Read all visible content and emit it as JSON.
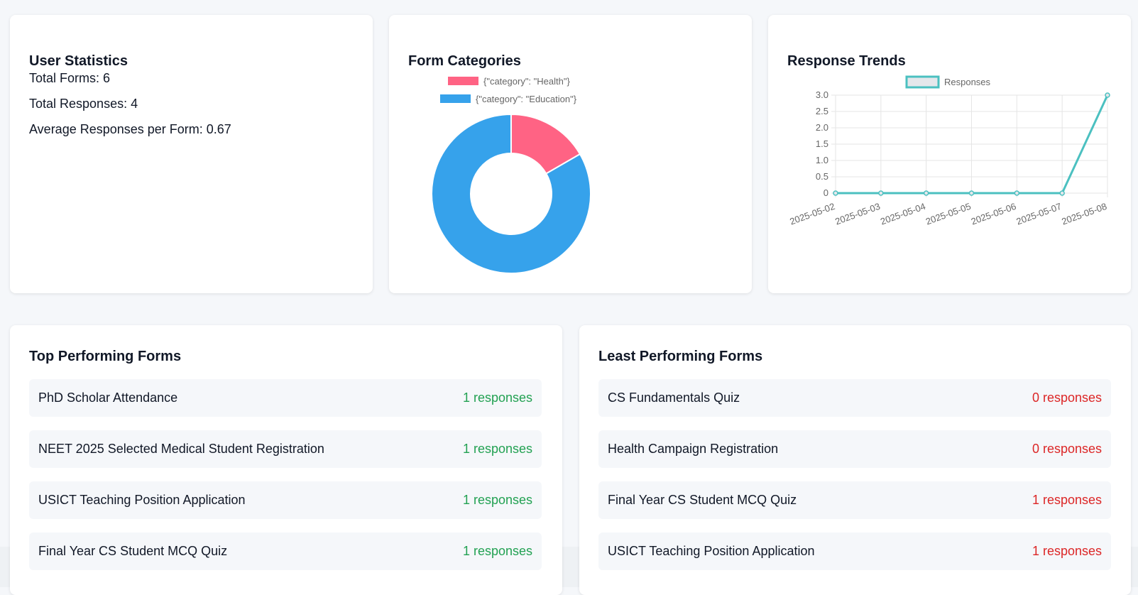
{
  "user_statistics": {
    "title": "User Statistics",
    "total_forms": "Total Forms: 6",
    "total_responses": "Total Responses: 4",
    "average_responses": "Average Responses per Form: 0.67"
  },
  "form_categories": {
    "title": "Form Categories",
    "legend": [
      {
        "label": "{\"category\": \"Health\"}",
        "color": "#ff6384"
      },
      {
        "label": "{\"category\": \"Education\"}",
        "color": "#36a2eb"
      }
    ]
  },
  "response_trends": {
    "title": "Response Trends",
    "legend_label": "Responses"
  },
  "top_performing": {
    "title": "Top Performing Forms",
    "items": [
      {
        "name": "PhD Scholar Attendance",
        "count": "1 responses"
      },
      {
        "name": "NEET 2025 Selected Medical Student Registration",
        "count": "1 responses"
      },
      {
        "name": "USICT Teaching Position Application",
        "count": "1 responses"
      },
      {
        "name": "Final Year CS Student MCQ Quiz",
        "count": "1 responses"
      }
    ]
  },
  "least_performing": {
    "title": "Least Performing Forms",
    "items": [
      {
        "name": "CS Fundamentals Quiz",
        "count": "0 responses"
      },
      {
        "name": "Health Campaign Registration",
        "count": "0 responses"
      },
      {
        "name": "Final Year CS Student MCQ Quiz",
        "count": "1 responses"
      },
      {
        "name": "USICT Teaching Position Application",
        "count": "1 responses"
      }
    ]
  },
  "chart_data": [
    {
      "type": "pie",
      "categories": [
        "{\"category\": \"Health\"}",
        "{\"category\": \"Education\"}"
      ],
      "values": [
        1,
        5
      ],
      "colors": [
        "#ff6384",
        "#36a2eb"
      ],
      "legend": "top"
    },
    {
      "type": "line",
      "x": [
        "2025-05-02",
        "2025-05-03",
        "2025-05-04",
        "2025-05-05",
        "2025-05-06",
        "2025-05-07",
        "2025-05-08"
      ],
      "series": [
        {
          "name": "Responses",
          "values": [
            0,
            0,
            0,
            0,
            0,
            0,
            3
          ],
          "color": "#4bc0c0"
        }
      ],
      "y_ticks": [
        "0",
        "0.5",
        "1.0",
        "1.5",
        "2.0",
        "2.5",
        "3.0"
      ],
      "ylim": [
        0,
        3
      ],
      "grid": true,
      "legend": "top"
    }
  ]
}
